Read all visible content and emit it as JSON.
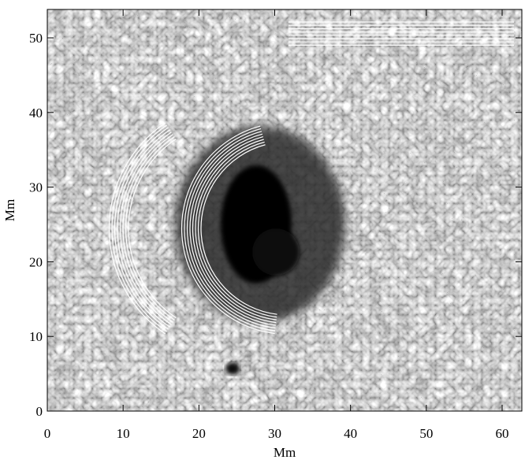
{
  "chart_data": {
    "type": "image",
    "xlabel": "Mm",
    "ylabel": "Mm",
    "xlim": [
      0,
      62.6
    ],
    "ylim": [
      0,
      53.8
    ],
    "xticks": [
      0,
      10,
      20,
      30,
      40,
      50,
      60
    ],
    "yticks": [
      0,
      10,
      20,
      30,
      40,
      50
    ]
  }
}
